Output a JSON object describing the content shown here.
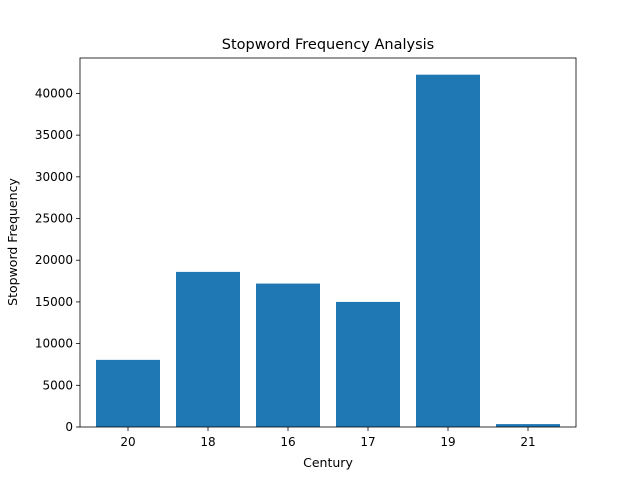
{
  "chart_data": {
    "type": "bar",
    "title": "Stopword Frequency Analysis",
    "xlabel": "Century",
    "ylabel": "Stopword Frequency",
    "categories": [
      "20",
      "18",
      "16",
      "17",
      "19",
      "21"
    ],
    "values": [
      8050,
      18600,
      17200,
      15000,
      42250,
      350
    ],
    "ylim": [
      0,
      44250
    ],
    "yticks": [
      0,
      5000,
      10000,
      15000,
      20000,
      25000,
      30000,
      35000,
      40000
    ],
    "bar_color": "#1f77b4",
    "grid": false,
    "legend": "none"
  }
}
